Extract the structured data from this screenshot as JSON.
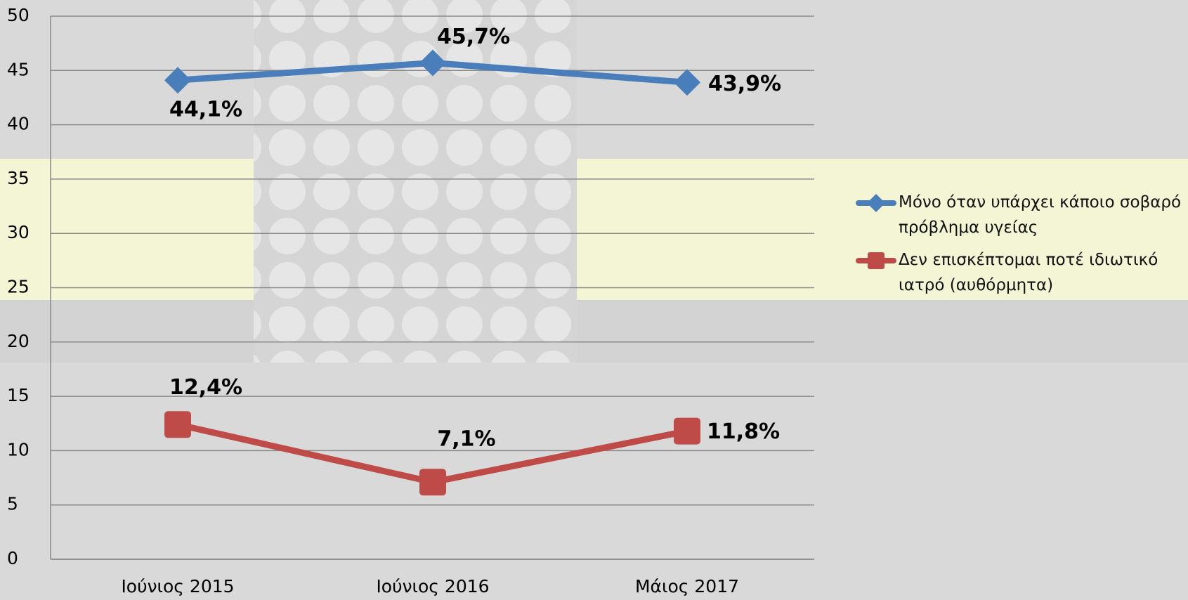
{
  "chart_data": {
    "type": "line",
    "categories": [
      "Ιούνιος 2015",
      "Ιούνιος 2016",
      "Μάιος 2017"
    ],
    "series": [
      {
        "name": "Μόνο όταν υπάρχει κάποιο σοβαρό πρόβλημα υγείας",
        "color": "#4a7ebb",
        "values": [
          44.1,
          45.7,
          43.9
        ],
        "value_labels": [
          "44,1%",
          "45,7%",
          "43,9%"
        ]
      },
      {
        "name": "Δεν επισκέπτομαι ποτέ ιδιωτικό ιατρό (αυθόρμητα)",
        "color": "#be4b48",
        "values": [
          12.4,
          7.1,
          11.8
        ],
        "value_labels": [
          "12,4%",
          "7,1%",
          "11,8%"
        ]
      }
    ],
    "ylim": [
      0,
      50
    ],
    "yticks": [
      0,
      5,
      10,
      15,
      20,
      25,
      30,
      35,
      40,
      45,
      50
    ],
    "grid": true,
    "legend": "right"
  }
}
